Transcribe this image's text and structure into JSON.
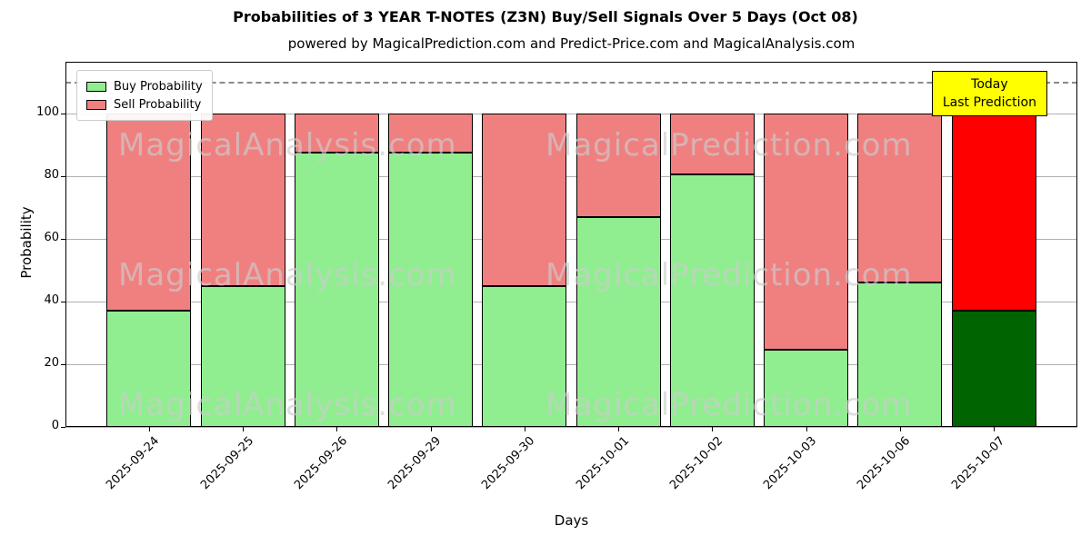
{
  "title": "Probabilities of 3 YEAR T-NOTES (Z3N) Buy/Sell Signals Over 5 Days (Oct 08)",
  "subtitle": "powered by MagicalPrediction.com and Predict-Price.com and MagicalAnalysis.com",
  "annotation_box": {
    "lines": [
      "Today",
      "Last Prediction"
    ],
    "bg": "#FFFF00"
  },
  "watermarks": {
    "left": "MagicalAnalysis.com",
    "right": "MagicalPrediction.com"
  },
  "chart_data": {
    "type": "bar",
    "stacked": true,
    "title": "Probabilities of 3 YEAR T-NOTES (Z3N) Buy/Sell Signals Over 5 Days (Oct 08)",
    "xlabel": "Days",
    "ylabel": "Probability",
    "categories": [
      "2025-09-24",
      "2025-09-25",
      "2025-09-26",
      "2025-09-29",
      "2025-09-30",
      "2025-10-01",
      "2025-10-02",
      "2025-10-03",
      "2025-10-06",
      "2025-10-07"
    ],
    "series": [
      {
        "name": "Buy Probability",
        "color": "#90EE90",
        "today_color": "#006400",
        "values": [
          37,
          45,
          87.5,
          87.5,
          45,
          67,
          80.5,
          24.5,
          46,
          37
        ]
      },
      {
        "name": "Sell Probability",
        "color": "#F08080",
        "today_color": "#FF0000",
        "values": [
          63,
          55,
          12.5,
          12.5,
          55,
          33,
          19.5,
          75.5,
          54,
          63
        ]
      }
    ],
    "yticks": [
      0,
      20,
      40,
      60,
      80,
      100
    ],
    "ylim": [
      0,
      116.5
    ],
    "dashed_line_y": 110,
    "grid": true,
    "legend_position": "upper left",
    "today_index": 9
  }
}
